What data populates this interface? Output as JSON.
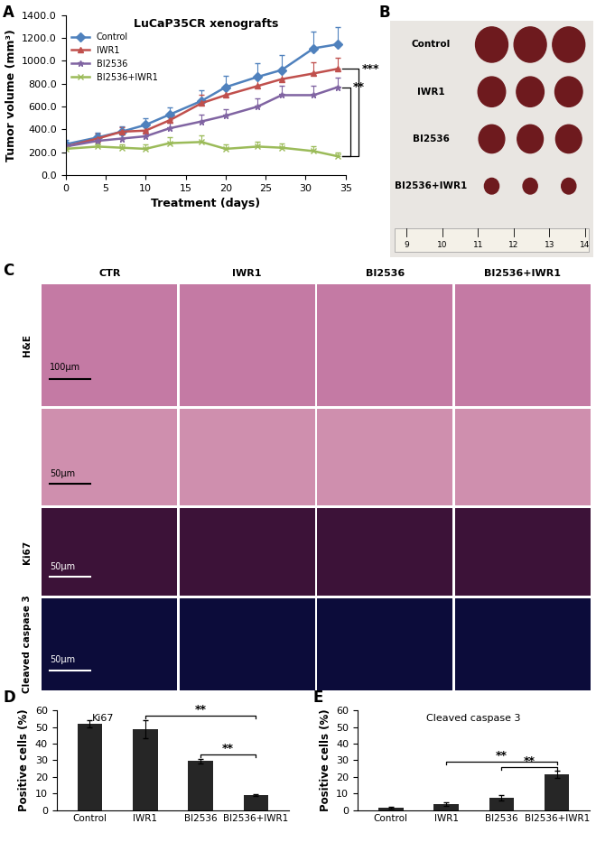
{
  "chart_data": [
    {
      "type": "line",
      "title": "LuCaP35CR xenografts",
      "xlabel": "Treatment (days)",
      "ylabel": "Tumor volume (mm³)",
      "x": [
        0,
        4,
        7,
        10,
        13,
        17,
        20,
        24,
        27,
        31,
        34
      ],
      "series": [
        {
          "name": "Control",
          "color": "#4f81bd",
          "marker": "diamond",
          "values": [
            270,
            330,
            380,
            440,
            530,
            650,
            770,
            860,
            920,
            1110,
            1145
          ],
          "errors": [
            40,
            40,
            50,
            60,
            60,
            90,
            100,
            120,
            130,
            150,
            150
          ]
        },
        {
          "name": "IWR1",
          "color": "#c0504d",
          "marker": "triangle",
          "values": [
            250,
            320,
            380,
            390,
            480,
            630,
            700,
            780,
            840,
            890,
            930
          ],
          "errors": [
            30,
            40,
            40,
            50,
            60,
            70,
            80,
            90,
            90,
            100,
            100
          ]
        },
        {
          "name": "BI2536",
          "color": "#8064a2",
          "marker": "star",
          "values": [
            250,
            300,
            320,
            340,
            410,
            470,
            520,
            600,
            700,
            700,
            770
          ],
          "errors": [
            30,
            40,
            40,
            40,
            50,
            60,
            60,
            70,
            80,
            80,
            80
          ]
        },
        {
          "name": "BI2536+IWR1",
          "color": "#9bbb59",
          "marker": "x",
          "values": [
            230,
            250,
            240,
            230,
            280,
            290,
            230,
            250,
            240,
            210,
            165
          ],
          "errors": [
            20,
            30,
            30,
            40,
            50,
            60,
            40,
            40,
            40,
            40,
            30
          ]
        }
      ],
      "comparisons": [
        {
          "from": "BI2536",
          "to": "BI2536+IWR1",
          "label": "**"
        },
        {
          "from": "IWR1",
          "to": "BI2536+IWR1",
          "label": "***"
        }
      ],
      "xlim": [
        0,
        35
      ],
      "xticks": [
        0,
        5,
        10,
        15,
        20,
        25,
        30,
        35
      ],
      "ylim": [
        0,
        1400
      ],
      "yticks": [
        {
          "value": 0,
          "label": "0.0"
        },
        {
          "value": 200,
          "label": "200.0"
        },
        {
          "value": 400,
          "label": "400.0"
        },
        {
          "value": 600,
          "label": "600.0"
        },
        {
          "value": 800,
          "label": "800.0"
        },
        {
          "value": 1000,
          "label": "1000.0"
        },
        {
          "value": 1200,
          "label": "1200.0"
        },
        {
          "value": 1400,
          "label": "1400.0"
        }
      ],
      "legend": "upper left",
      "grid": false
    },
    {
      "type": "bar",
      "title": "Ki67",
      "ylabel": "Positive cells (%)",
      "categories": [
        "Control",
        "IWR1",
        "BI2536",
        "BI2536+IWR1"
      ],
      "values": [
        52,
        49,
        29.5,
        9
      ],
      "errors": [
        2,
        5.5,
        1.5,
        0.5
      ],
      "color": "#262626",
      "ylim": [
        0,
        60
      ],
      "yticks": [
        0,
        10,
        20,
        30,
        40,
        50,
        60
      ],
      "comparisons": [
        {
          "from": "IWR1",
          "to": "BI2536+IWR1",
          "label": "**"
        },
        {
          "from": "BI2536",
          "to": "BI2536+IWR1",
          "label": "**"
        }
      ],
      "grid": false
    },
    {
      "type": "bar",
      "title": "Cleaved caspase 3",
      "ylabel": "Positive cells (%)",
      "categories": [
        "Control",
        "IWR1",
        "BI2536",
        "BI2536+IWR1"
      ],
      "values": [
        1.5,
        3.5,
        7.5,
        21.5
      ],
      "errors": [
        0.5,
        1,
        1.5,
        2
      ],
      "color": "#262626",
      "ylim": [
        0,
        60
      ],
      "yticks": [
        0,
        10,
        20,
        30,
        40,
        50,
        60
      ],
      "comparisons": [
        {
          "from": "IWR1",
          "to": "BI2536+IWR1",
          "label": "**"
        },
        {
          "from": "BI2536",
          "to": "BI2536+IWR1",
          "label": "**"
        }
      ],
      "grid": false
    }
  ],
  "panel_letters": [
    "A",
    "B",
    "C",
    "D",
    "E"
  ],
  "photo": {
    "labels": [
      "Control",
      "IWR1",
      "BI2536",
      "BI2536+IWR1"
    ],
    "ruler": [
      9,
      10,
      11,
      12,
      13,
      14
    ]
  },
  "histology": {
    "columns": [
      "CTR",
      "IWR1",
      "BI2536",
      "BI2536+IWR1"
    ],
    "rows": [
      {
        "label": "H&E",
        "scale_bar": "100µm"
      },
      {
        "scale_bar": "50µm"
      },
      {
        "label": "Ki67",
        "scale_bar": "50µm"
      },
      {
        "label": "Cleaved caspase 3",
        "scale_bar": "50µm"
      }
    ]
  }
}
